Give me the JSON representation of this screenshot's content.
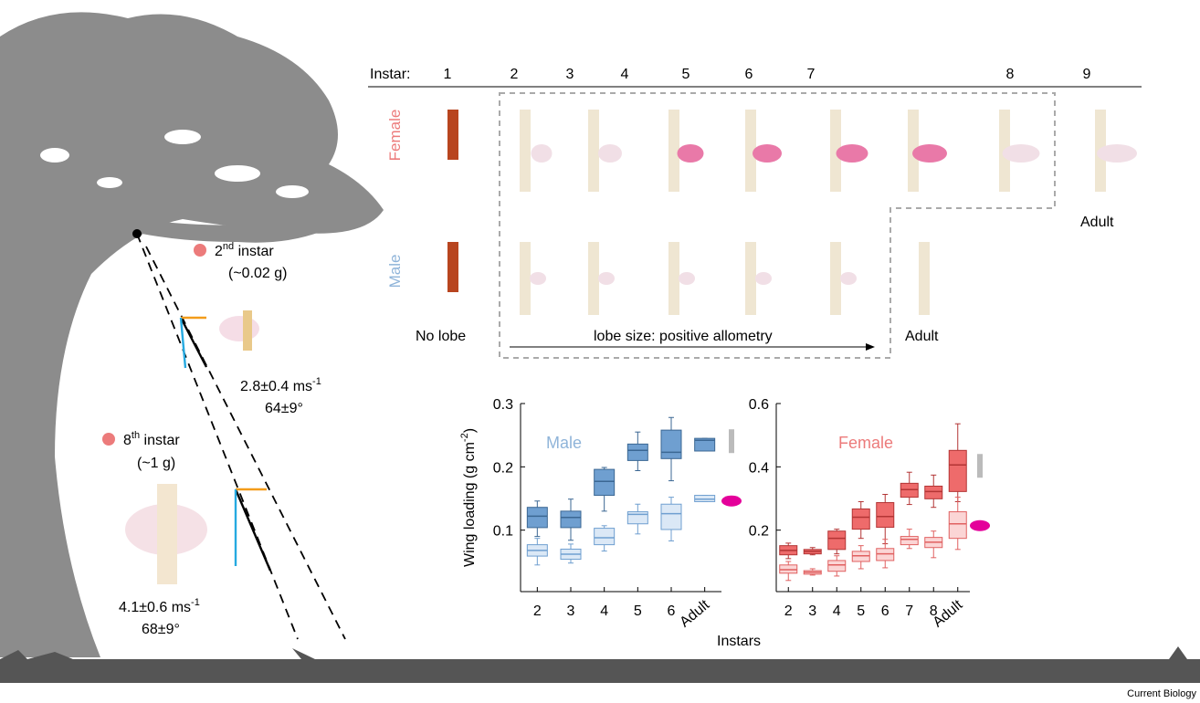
{
  "labels": {
    "instar_heading": "Instar:",
    "instars": [
      "1",
      "2",
      "3",
      "4",
      "5",
      "6",
      "7",
      "8",
      "9"
    ],
    "female_row": "Female",
    "male_row": "Male",
    "adult_female": "Adult",
    "adult_male": "Adult",
    "no_lobe": "No lobe",
    "allometry": "lobe size: positive allometry",
    "second": {
      "number": "2",
      "suffix": "nd",
      "text": " instar",
      "mass": "(~0.02 g)",
      "speed": "2.8±0.4 ms",
      "speed_unit": "-1",
      "angle": "64±9°"
    },
    "eighth": {
      "number": "8",
      "suffix": "th",
      "text": " instar",
      "mass": "(~1 g)",
      "speed": "4.1±0.6 ms",
      "speed_unit": "-1",
      "angle": "68±9°"
    },
    "y_label": {
      "text": "Wing loading (g cm",
      "sup": "-2",
      "end": ")"
    },
    "x_label": "Instars",
    "journal": "Current Biology"
  },
  "chart_data": [
    {
      "type": "box",
      "title": "Male",
      "title_color": "#8fb4d9",
      "categories": [
        "2",
        "3",
        "4",
        "5",
        "6",
        "Adult"
      ],
      "ylim": [
        0,
        0.3
      ],
      "yticks": [
        0.1,
        0.2,
        0.3
      ],
      "series": [
        {
          "color": "#6f9fd0",
          "edge": "#3b6793",
          "min": [
            0.09,
            0.084,
            0.13,
            0.194,
            0.178,
            0.225
          ],
          "q1": [
            0.104,
            0.104,
            0.155,
            0.21,
            0.213,
            0.225
          ],
          "median": [
            0.122,
            0.12,
            0.177,
            0.226,
            0.223,
            0.242
          ],
          "q3": [
            0.136,
            0.13,
            0.196,
            0.236,
            0.258,
            0.245
          ],
          "max": [
            0.146,
            0.149,
            0.199,
            0.255,
            0.278,
            0.245
          ]
        },
        {
          "color": "#dbe8f6",
          "edge": "#6f9fd0",
          "min": [
            0.045,
            0.048,
            0.067,
            0.094,
            0.083,
            0.145
          ],
          "q1": [
            0.059,
            0.054,
            0.077,
            0.11,
            0.101,
            0.145
          ],
          "median": [
            0.068,
            0.062,
            0.088,
            0.125,
            0.126,
            0.149
          ],
          "q3": [
            0.077,
            0.07,
            0.103,
            0.129,
            0.141,
            0.155
          ],
          "max": [
            0.087,
            0.078,
            0.107,
            0.141,
            0.152,
            0.155
          ]
        }
      ]
    },
    {
      "type": "box",
      "title": "Female",
      "title_color": "#ec7b7b",
      "categories": [
        "2",
        "3",
        "4",
        "5",
        "6",
        "7",
        "8",
        "Adult"
      ],
      "ylim": [
        0,
        0.6
      ],
      "yticks": [
        0.2,
        0.4,
        0.6
      ],
      "series": [
        {
          "color": "#ee6b6b",
          "edge": "#b33535",
          "min": [
            0.11,
            0.122,
            0.125,
            0.174,
            0.157,
            0.281,
            0.272,
            0.29
          ],
          "q1": [
            0.122,
            0.125,
            0.139,
            0.203,
            0.209,
            0.304,
            0.299,
            0.322
          ],
          "median": [
            0.136,
            0.133,
            0.174,
            0.241,
            0.243,
            0.328,
            0.322,
            0.406
          ],
          "q3": [
            0.151,
            0.139,
            0.197,
            0.267,
            0.287,
            0.348,
            0.339,
            0.452
          ],
          "max": [
            0.159,
            0.145,
            0.203,
            0.29,
            0.313,
            0.383,
            0.374,
            0.536
          ]
        },
        {
          "color": "#fbd5d5",
          "edge": "#e06060",
          "min": [
            0.041,
            0.058,
            0.055,
            0.078,
            0.081,
            0.142,
            0.113,
            0.139
          ],
          "q1": [
            0.064,
            0.061,
            0.07,
            0.101,
            0.104,
            0.154,
            0.145,
            0.174
          ],
          "median": [
            0.075,
            0.067,
            0.09,
            0.119,
            0.125,
            0.171,
            0.162,
            0.22
          ],
          "q3": [
            0.09,
            0.072,
            0.104,
            0.133,
            0.142,
            0.18,
            0.177,
            0.258
          ],
          "max": [
            0.101,
            0.078,
            0.119,
            0.151,
            0.171,
            0.203,
            0.197,
            0.304
          ]
        }
      ]
    }
  ]
}
